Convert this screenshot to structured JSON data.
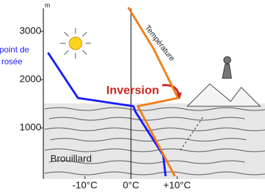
{
  "chart_data": {
    "type": "line",
    "y_unit": "m",
    "xlim": [
      -19,
      28
    ],
    "ylim": [
      0,
      3600
    ],
    "xticks": [
      {
        "value": -10,
        "label": "-10°C"
      },
      {
        "value": 0,
        "label": "0°C"
      },
      {
        "value": 10,
        "label": "+10°C"
      }
    ],
    "yticks": [
      1000,
      2000,
      3000
    ],
    "series": [
      {
        "color": "#1a1aff",
        "x": [
          -18,
          -11.5,
          0.5,
          1,
          7,
          7.5
        ],
        "values": [
          2560,
          1620,
          1450,
          1330,
          430,
          0
        ]
      },
      {
        "color": "#f07f1a",
        "x": [
          -0.6,
          4.9,
          10.2,
          1.5,
          9.5
        ],
        "values": [
          3500,
          2640,
          1620,
          1450,
          0
        ]
      }
    ],
    "annotations": [
      {
        "text": "point de",
        "color": "#1a1aff"
      },
      {
        "text": "rosée",
        "color": "#1a1aff"
      },
      {
        "text": "Température",
        "color": "#222"
      },
      {
        "text": "Inversion",
        "color": "#c8281e"
      },
      {
        "text": "Brouillard",
        "color": "#222"
      }
    ]
  }
}
